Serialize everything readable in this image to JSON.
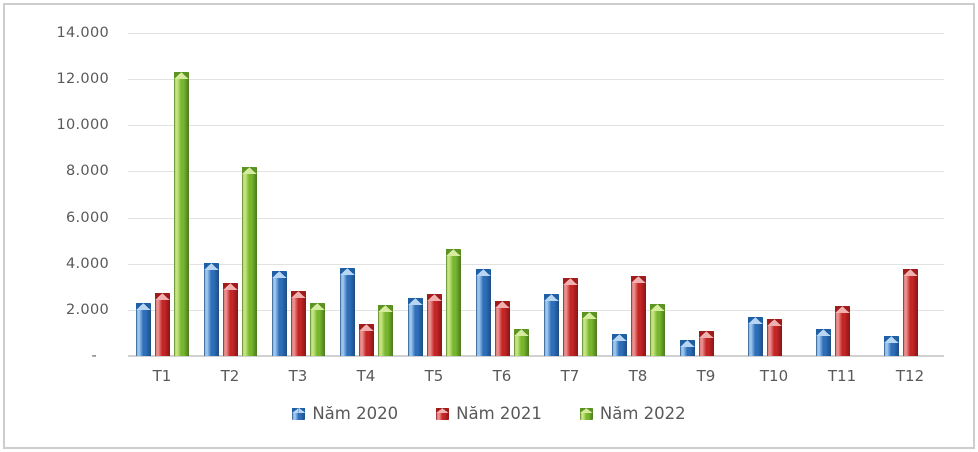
{
  "chart_data": {
    "type": "bar",
    "title": "",
    "xlabel": "",
    "ylabel": "",
    "categories": [
      "T1",
      "T2",
      "T3",
      "T4",
      "T5",
      "T6",
      "T7",
      "T8",
      "T9",
      "T10",
      "T11",
      "T12"
    ],
    "series": [
      {
        "name": "Năm 2020",
        "values": [
          2300,
          4050,
          3700,
          3800,
          2500,
          3750,
          2700,
          950,
          700,
          1700,
          1150,
          850
        ],
        "colors": {
          "main": "#2e6fba",
          "light": "#9cc5ec",
          "dark": "#1c4c84",
          "capLight": "#b8d6f2",
          "capDark": "#1f5fa6"
        }
      },
      {
        "name": "Năm 2021",
        "values": [
          2750,
          3150,
          2800,
          1400,
          2700,
          2400,
          3400,
          3450,
          1100,
          1600,
          2150,
          3750
        ],
        "colors": {
          "main": "#c42626",
          "light": "#e98f8f",
          "dark": "#8a1414",
          "capLight": "#f0b0b0",
          "capDark": "#a11b1b"
        }
      },
      {
        "name": "Năm 2022",
        "values": [
          12300,
          8200,
          2300,
          2200,
          4650,
          1150,
          1900,
          2250,
          0,
          0,
          0,
          0
        ],
        "colors": {
          "main": "#77b72f",
          "light": "#c6e380",
          "dark": "#4c771d",
          "capLight": "#d6eb9e",
          "capDark": "#5c9423"
        }
      }
    ],
    "ylim": [
      0,
      14000
    ],
    "y_ticks": [
      {
        "value": 14000,
        "label": "14.000"
      },
      {
        "value": 12000,
        "label": "12.000"
      },
      {
        "value": 10000,
        "label": "10.000"
      },
      {
        "value": 8000,
        "label": "8.000"
      },
      {
        "value": 6000,
        "label": "6.000"
      },
      {
        "value": 4000,
        "label": "4.000"
      },
      {
        "value": 2000,
        "label": "2.000"
      },
      {
        "value": 0,
        "label": "-"
      }
    ],
    "grid": true,
    "legend_position": "bottom"
  },
  "style_hints": {
    "gridline_color": "#e2e2e2",
    "axis_line_color": "#d0d0d0",
    "label_color": "#595959",
    "frame_border_color": "#cdcdcd",
    "background": "#ffffff"
  }
}
